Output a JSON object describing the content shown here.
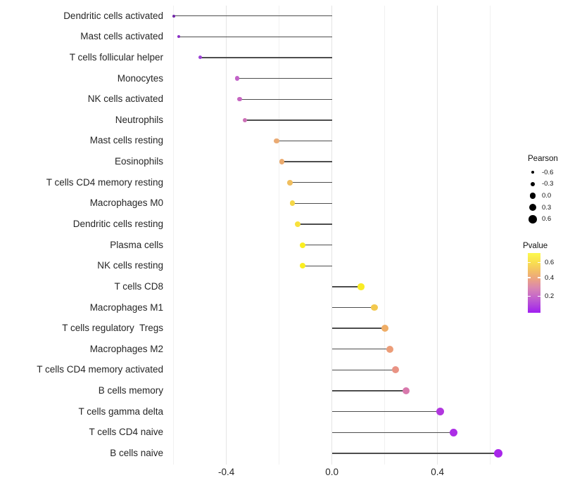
{
  "chart_data": {
    "type": "scatter",
    "subtype": "lollipop",
    "title": "",
    "xlabel": "",
    "ylabel": "",
    "xlim": [
      -0.625,
      0.66
    ],
    "grid": "on",
    "x_major_ticks": [
      -0.4,
      0.0,
      0.4
    ],
    "x_major_tick_labels": [
      "-0.4",
      "0.0",
      "0.4"
    ],
    "x_minor_ticks": [
      -0.6,
      -0.2,
      0.2,
      0.6
    ],
    "categories": [
      "Dendritic cells activated",
      "Mast cells activated",
      "T cells follicular helper",
      "Monocytes",
      "NK cells activated",
      "Neutrophils",
      "Mast cells resting",
      "Eosinophils",
      "T cells CD4 memory resting",
      "Macrophages M0",
      "Dendritic cells resting",
      "Plasma cells",
      "NK cells resting",
      "T cells CD8",
      "Macrophages M1",
      "T cells regulatory  Tregs",
      "Macrophages M2",
      "T cells CD4 memory activated",
      "B cells memory",
      "T cells gamma delta",
      "T cells CD4 naive",
      "B cells naive"
    ],
    "points": [
      {
        "label": "Dendritic cells activated",
        "pearson": -0.6,
        "pvalue_est": 0.04,
        "color": "#7127A8"
      },
      {
        "label": "Mast cells activated",
        "pearson": -0.58,
        "pvalue_est": 0.09,
        "color": "#8A2FC5"
      },
      {
        "label": "T cells follicular helper",
        "pearson": -0.5,
        "pvalue_est": 0.13,
        "color": "#9C42D6"
      },
      {
        "label": "Monocytes",
        "pearson": -0.36,
        "pvalue_est": 0.21,
        "color": "#C263C8"
      },
      {
        "label": "NK cells activated",
        "pearson": -0.35,
        "pvalue_est": 0.22,
        "color": "#C666C1"
      },
      {
        "label": "Neutrophils",
        "pearson": -0.33,
        "pvalue_est": 0.25,
        "color": "#CC6FB6"
      },
      {
        "label": "Mast cells resting",
        "pearson": -0.21,
        "pvalue_est": 0.41,
        "color": "#EAAB74"
      },
      {
        "label": "Eosinophils",
        "pearson": -0.19,
        "pvalue_est": 0.42,
        "color": "#EBAB6E"
      },
      {
        "label": "T cells CD4 memory resting",
        "pearson": -0.16,
        "pvalue_est": 0.47,
        "color": "#F0BE5F"
      },
      {
        "label": "Macrophages M0",
        "pearson": -0.15,
        "pvalue_est": 0.53,
        "color": "#F5D748"
      },
      {
        "label": "Dendritic cells resting",
        "pearson": -0.13,
        "pvalue_est": 0.56,
        "color": "#F8E13C"
      },
      {
        "label": "Plasma cells",
        "pearson": -0.11,
        "pvalue_est": 0.61,
        "color": "#FAEE21"
      },
      {
        "label": "NK cells resting",
        "pearson": -0.11,
        "pvalue_est": 0.61,
        "color": "#FAEE21"
      },
      {
        "label": "T cells CD8",
        "pearson": 0.11,
        "pvalue_est": 0.6,
        "color": "#F9EC25"
      },
      {
        "label": "Macrophages M1",
        "pearson": 0.16,
        "pvalue_est": 0.5,
        "color": "#F3C94E"
      },
      {
        "label": "T cells regulatory  Tregs",
        "pearson": 0.2,
        "pvalue_est": 0.42,
        "color": "#EFAD66"
      },
      {
        "label": "Macrophages M2",
        "pearson": 0.22,
        "pvalue_est": 0.37,
        "color": "#EC9D78"
      },
      {
        "label": "T cells CD4 memory activated",
        "pearson": 0.24,
        "pvalue_est": 0.34,
        "color": "#E99384"
      },
      {
        "label": "B cells memory",
        "pearson": 0.28,
        "pvalue_est": 0.23,
        "color": "#D878AC"
      },
      {
        "label": "T cells gamma delta",
        "pearson": 0.41,
        "pvalue_est": 0.12,
        "color": "#B137DE"
      },
      {
        "label": "T cells CD4 naive",
        "pearson": 0.46,
        "pvalue_est": 0.09,
        "color": "#AC2EE6"
      },
      {
        "label": "B cells naive",
        "pearson": 0.63,
        "pvalue_est": 0.05,
        "color": "#A826EA"
      }
    ],
    "legend_position": "right"
  },
  "legend": {
    "size": {
      "title": "Pearson",
      "entries": [
        {
          "label": "-0.6",
          "value": -0.6
        },
        {
          "label": "-0.3",
          "value": -0.3
        },
        {
          "label": "0.0",
          "value": 0.0
        },
        {
          "label": "0.3",
          "value": 0.3
        },
        {
          "label": "0.6",
          "value": 0.6
        }
      ],
      "dot_color": "#000000"
    },
    "color": {
      "title": "Pvalue",
      "ticks": [
        {
          "label": "0.6"
        },
        {
          "label": "0.4"
        },
        {
          "label": "0.2"
        }
      ],
      "gradient_top": "#FCF94F",
      "gradient_mid": "#EBA283",
      "gradient_bottom": "#A01EF0"
    }
  }
}
